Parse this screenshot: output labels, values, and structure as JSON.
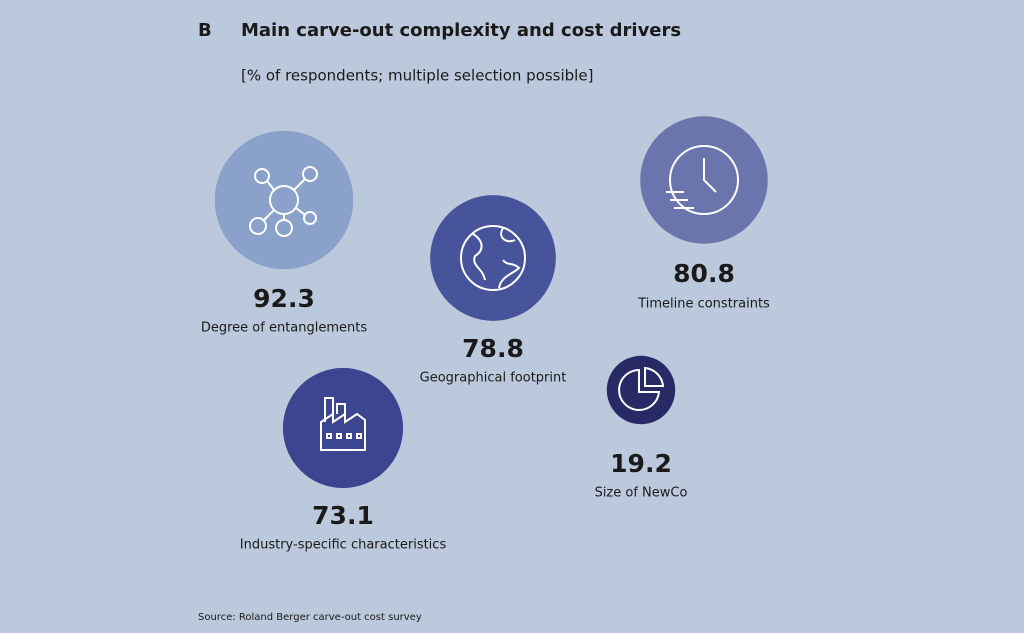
{
  "chart_data": {
    "type": "bubble",
    "panel_label": "B",
    "title": "Main carve-out complexity and cost drivers",
    "subtitle": "[% of respondents; multiple selection possible]",
    "categories": [
      "Degree of entanglements",
      "Geographical footprint",
      "Timeline constraints",
      "Industry-specific characteristics",
      "Size of NewCo"
    ],
    "values": [
      92.3,
      78.8,
      80.8,
      73.1,
      19.2
    ],
    "colors": [
      "#8aa2c9",
      "#47539a",
      "#6a75ad",
      "#3b4590",
      "#282a66"
    ],
    "source": "Source: Roland Berger carve-out cost survey"
  }
}
